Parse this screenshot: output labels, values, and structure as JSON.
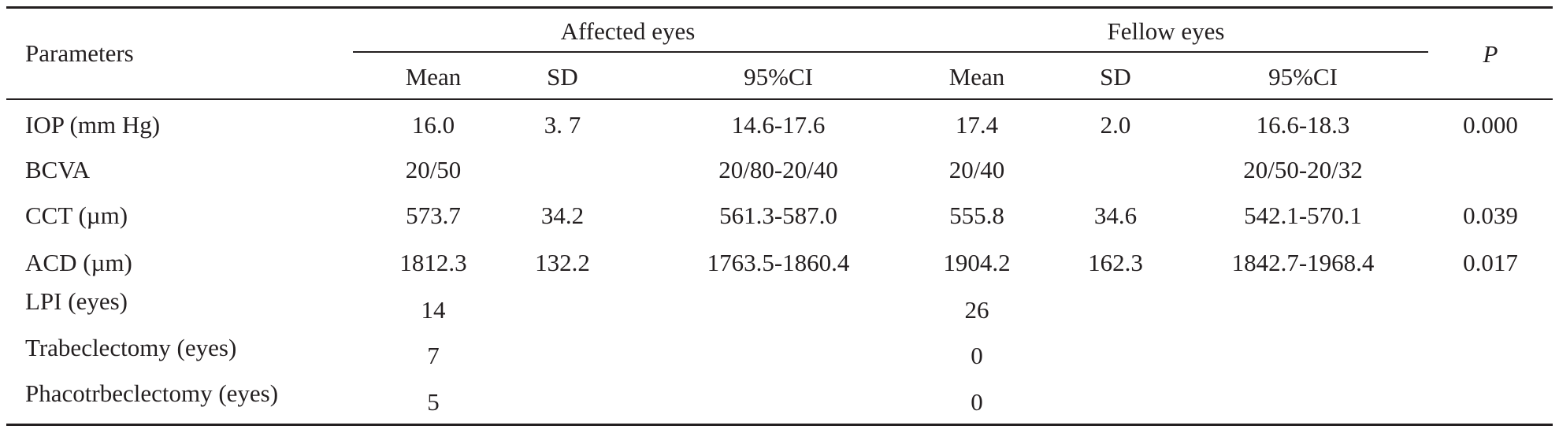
{
  "table": {
    "header": {
      "parameters": "Parameters",
      "group_affected": "Affected eyes",
      "group_fellow": "Fellow eyes",
      "p": "P",
      "sub": [
        "Mean",
        "SD",
        "95%CI",
        "Mean",
        "SD",
        "95%CI"
      ]
    },
    "rows": [
      {
        "label": "IOP (mm Hg)",
        "cells": [
          "16.0",
          "3. 7",
          "14.6-17.6",
          "17.4",
          "2.0",
          "16.6-18.3",
          "0.000"
        ]
      },
      {
        "label": "BCVA",
        "cells": [
          "20/50",
          "",
          "20/80-20/40",
          "20/40",
          "",
          "20/50-20/32",
          ""
        ]
      },
      {
        "label": "CCT (µm)",
        "cells": [
          "573.7",
          "34.2",
          "561.3-587.0",
          "555.8",
          "34.6",
          "542.1-570.1",
          "0.039"
        ]
      },
      {
        "label": "ACD (µm)",
        "cells": [
          "1812.3",
          "132.2",
          "1763.5-1860.4",
          "1904.2",
          "162.3",
          "1842.7-1968.4",
          "0.017"
        ]
      },
      {
        "label": "LPI (eyes)",
        "cells": [
          "14",
          "",
          "",
          "26",
          "",
          "",
          ""
        ]
      },
      {
        "label": "Trabeclectomy (eyes)",
        "cells": [
          "7",
          "",
          "",
          "0",
          "",
          "",
          ""
        ]
      },
      {
        "label": "Phacotrbeclectomy (eyes)",
        "cells": [
          "5",
          "",
          "",
          "0",
          "",
          "",
          ""
        ]
      }
    ]
  }
}
